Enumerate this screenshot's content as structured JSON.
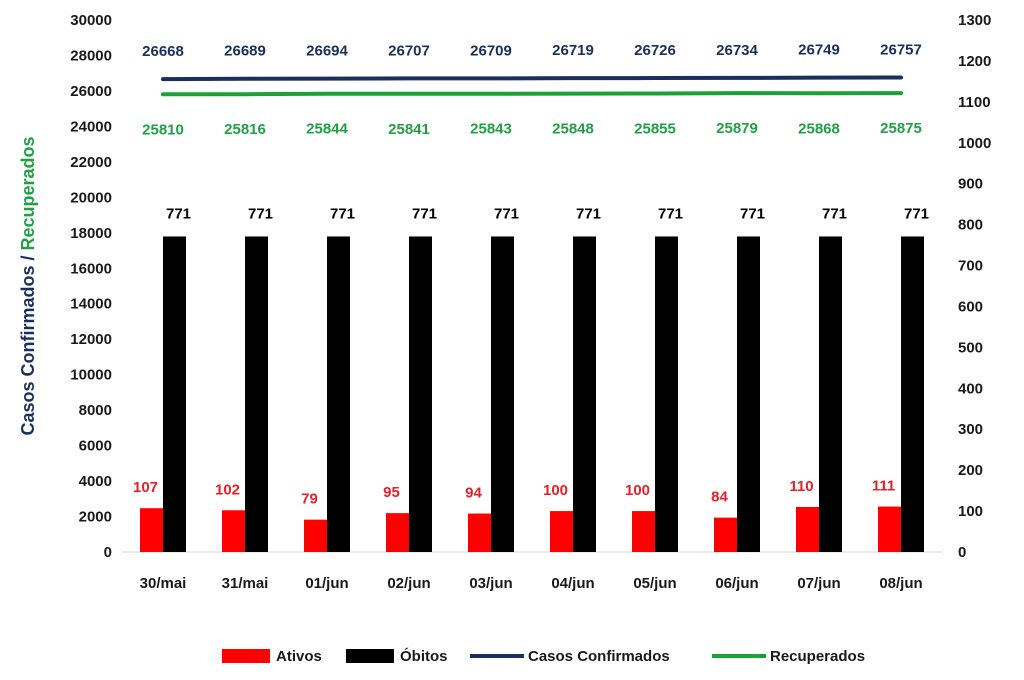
{
  "chart_data": {
    "type": "bar",
    "categories": [
      "30/mai",
      "31/mai",
      "01/jun",
      "02/jun",
      "03/jun",
      "04/jun",
      "05/jun",
      "06/jun",
      "07/jun",
      "08/jun"
    ],
    "series": [
      {
        "name": "Ativos",
        "type": "bar",
        "axis": "right",
        "color": "#ff0000",
        "label_color": "#e8202a",
        "values": [
          107,
          102,
          79,
          95,
          94,
          100,
          100,
          84,
          110,
          111
        ]
      },
      {
        "name": "Óbitos",
        "type": "bar",
        "axis": "right",
        "color": "#000000",
        "label_color": "#000000",
        "values": [
          771,
          771,
          771,
          771,
          771,
          771,
          771,
          771,
          771,
          771
        ]
      },
      {
        "name": "Casos Confirmados",
        "type": "line",
        "axis": "left",
        "color": "#1a2f5e",
        "label_color": "#1a2f5e",
        "values": [
          26668,
          26689,
          26694,
          26707,
          26709,
          26719,
          26726,
          26734,
          26749,
          26757
        ]
      },
      {
        "name": "Recuperados",
        "type": "line",
        "axis": "left",
        "color": "#1aa335",
        "label_color": "#22a045",
        "values": [
          25810,
          25816,
          25844,
          25841,
          25843,
          25848,
          25855,
          25879,
          25868,
          25875
        ]
      }
    ],
    "ylabel_parts": [
      {
        "text": "Casos Confirmados",
        "color": "#1a2f5e"
      },
      {
        "text": " / ",
        "color": "#1a2f5e"
      },
      {
        "text": "Recuperados",
        "color": "#22a045"
      }
    ],
    "ylim": [
      0,
      30000
    ],
    "y_ticks": [
      0,
      2000,
      4000,
      6000,
      8000,
      10000,
      12000,
      14000,
      16000,
      18000,
      20000,
      22000,
      24000,
      26000,
      28000,
      30000
    ],
    "y2lim": [
      0,
      1300
    ],
    "y2_ticks": [
      0,
      100,
      200,
      300,
      400,
      500,
      600,
      700,
      800,
      900,
      1000,
      1100,
      1200,
      1300
    ],
    "grid": false,
    "legend_position": "bottom"
  }
}
